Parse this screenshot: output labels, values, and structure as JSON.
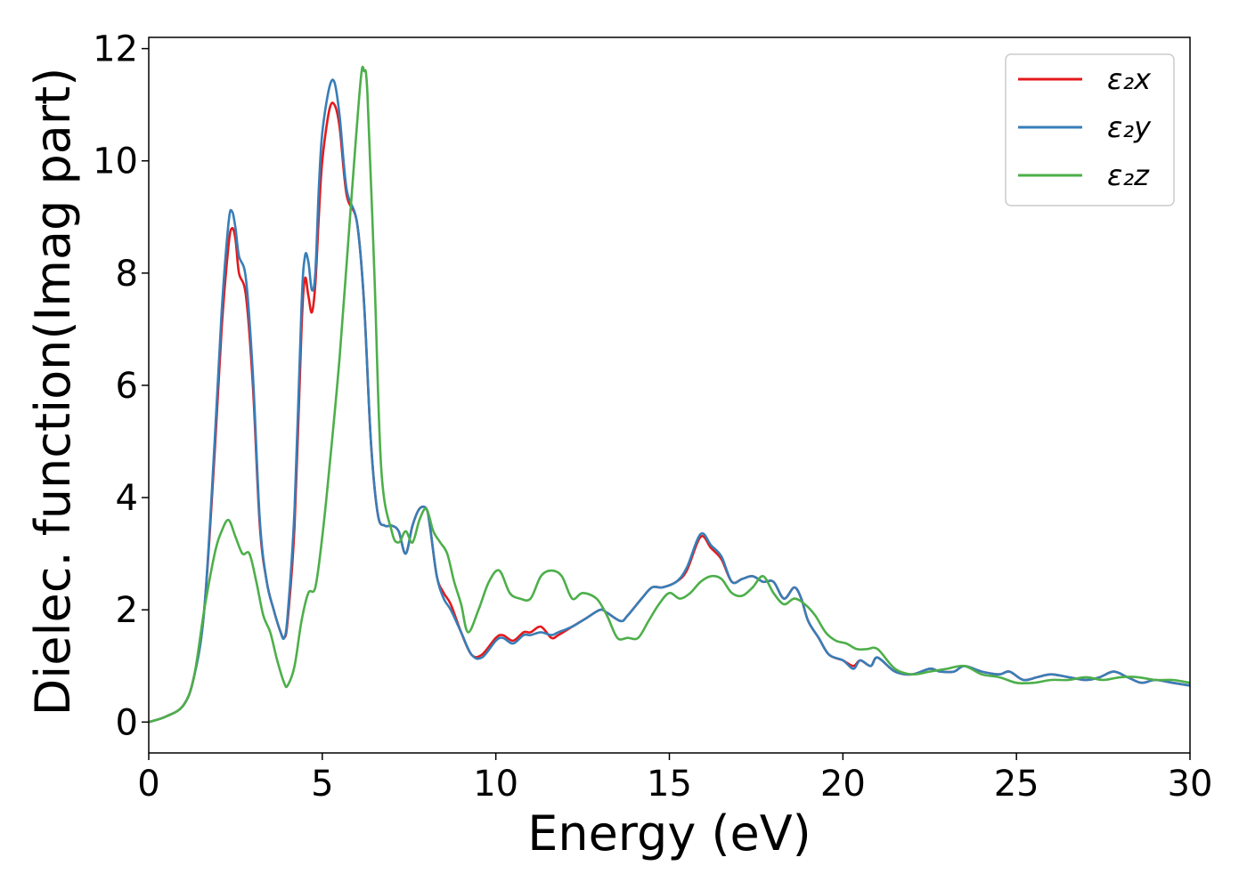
{
  "chart_data": {
    "type": "line",
    "xlabel": "Energy (eV)",
    "ylabel": "Dielec. function(Imag part)",
    "xlim": [
      0,
      30
    ],
    "ylim": [
      -0.55,
      12.2
    ],
    "xticks": [
      "0",
      "5",
      "10",
      "15",
      "20",
      "25",
      "30"
    ],
    "yticks": [
      "0",
      "2",
      "4",
      "6",
      "8",
      "10",
      "12"
    ],
    "grid": false,
    "legend_position": "top-right",
    "legend": [
      "ε₂x",
      "ε₂y",
      "ε₂z"
    ],
    "series": [
      {
        "name": "ε₂x",
        "color": "#e41a1c",
        "x": [
          0,
          0.5,
          1,
          1.3,
          1.6,
          1.9,
          2.1,
          2.3,
          2.4,
          2.5,
          2.6,
          2.8,
          3,
          3.2,
          3.4,
          3.6,
          3.8,
          3.9,
          4,
          4.2,
          4.4,
          4.5,
          4.6,
          4.7,
          4.8,
          4.9,
          5,
          5.2,
          5.35,
          5.5,
          5.7,
          6,
          6.2,
          6.4,
          6.6,
          6.8,
          7,
          7.2,
          7.4,
          7.6,
          7.8,
          8,
          8.1,
          8.3,
          8.5,
          8.7,
          9,
          9.3,
          9.6,
          10,
          10.2,
          10.5,
          10.8,
          11,
          11.3,
          11.6,
          11.8,
          12.2,
          12.6,
          13,
          13.2,
          13.6,
          13.8,
          14.2,
          14.5,
          14.8,
          15.2,
          15.5,
          15.9,
          16.2,
          16.5,
          16.8,
          17.1,
          17.4,
          17.7,
          18,
          18.3,
          18.6,
          18.8,
          19,
          19.3,
          19.6,
          20,
          20.3,
          20.5,
          20.8,
          21,
          21.5,
          22,
          22.5,
          22.8,
          23.2,
          23.5,
          24,
          24.5,
          24.8,
          25.2,
          25.6,
          26,
          26.5,
          27,
          27.4,
          27.8,
          28.2,
          28.6,
          29,
          29.5,
          30
        ],
        "y": [
          0,
          0.1,
          0.3,
          0.8,
          2,
          4.8,
          7,
          8.5,
          8.8,
          8.6,
          8,
          7.6,
          6,
          3.5,
          2.5,
          2,
          1.6,
          1.5,
          1.8,
          3.5,
          7,
          7.9,
          7.6,
          7.3,
          7.8,
          9,
          10,
          10.9,
          11,
          10.6,
          9.4,
          8.9,
          7.5,
          5,
          3.7,
          3.5,
          3.5,
          3.4,
          3,
          3.5,
          3.8,
          3.8,
          3.5,
          2.6,
          2.3,
          2.1,
          1.6,
          1.2,
          1.2,
          1.5,
          1.55,
          1.45,
          1.6,
          1.6,
          1.7,
          1.5,
          1.55,
          1.7,
          1.85,
          2,
          1.95,
          1.8,
          1.9,
          2.2,
          2.4,
          2.4,
          2.5,
          2.7,
          3.3,
          3.1,
          2.9,
          2.5,
          2.55,
          2.6,
          2.5,
          2.5,
          2.2,
          2.4,
          2.2,
          1.8,
          1.5,
          1.2,
          1.1,
          1,
          1.1,
          1,
          1.15,
          0.9,
          0.85,
          0.95,
          0.9,
          0.9,
          1,
          0.9,
          0.85,
          0.9,
          0.75,
          0.8,
          0.85,
          0.8,
          0.75,
          0.8,
          0.9,
          0.8,
          0.7,
          0.75,
          0.7,
          0.65
        ]
      },
      {
        "name": "ε₂y",
        "color": "#377eb8",
        "x": [
          0,
          0.5,
          1,
          1.3,
          1.6,
          1.9,
          2.1,
          2.3,
          2.4,
          2.5,
          2.6,
          2.8,
          3,
          3.2,
          3.4,
          3.6,
          3.8,
          3.9,
          4,
          4.2,
          4.4,
          4.5,
          4.6,
          4.7,
          4.8,
          4.9,
          5,
          5.2,
          5.35,
          5.5,
          5.7,
          6,
          6.2,
          6.4,
          6.6,
          6.8,
          7,
          7.2,
          7.4,
          7.6,
          7.8,
          8,
          8.1,
          8.3,
          8.5,
          8.7,
          9,
          9.3,
          9.6,
          10,
          10.2,
          10.5,
          10.8,
          11,
          11.3,
          11.6,
          11.8,
          12.2,
          12.6,
          13,
          13.2,
          13.6,
          13.8,
          14.2,
          14.5,
          14.8,
          15.2,
          15.5,
          15.9,
          16.2,
          16.5,
          16.8,
          17.1,
          17.4,
          17.7,
          18,
          18.3,
          18.6,
          18.8,
          19,
          19.3,
          19.6,
          20,
          20.3,
          20.5,
          20.8,
          21,
          21.5,
          22,
          22.5,
          22.8,
          23.2,
          23.5,
          24,
          24.5,
          24.8,
          25.2,
          25.6,
          26,
          26.5,
          27,
          27.4,
          27.8,
          28.2,
          28.6,
          29,
          29.5,
          30
        ],
        "y": [
          0,
          0.1,
          0.3,
          0.8,
          2,
          5,
          7.3,
          8.9,
          9.1,
          8.8,
          8.3,
          7.9,
          6.2,
          3.6,
          2.5,
          2,
          1.6,
          1.5,
          1.9,
          3.8,
          7.4,
          8.3,
          8.2,
          7.7,
          8,
          9.5,
          10.5,
          11.3,
          11.4,
          10.8,
          9.5,
          8.9,
          7.5,
          5,
          3.7,
          3.5,
          3.5,
          3.4,
          3,
          3.5,
          3.8,
          3.8,
          3.5,
          2.6,
          2.2,
          2,
          1.6,
          1.2,
          1.15,
          1.45,
          1.5,
          1.4,
          1.55,
          1.55,
          1.6,
          1.55,
          1.6,
          1.7,
          1.85,
          2,
          1.95,
          1.8,
          1.9,
          2.2,
          2.4,
          2.4,
          2.5,
          2.75,
          3.35,
          3.15,
          2.95,
          2.5,
          2.55,
          2.6,
          2.5,
          2.5,
          2.2,
          2.4,
          2.2,
          1.8,
          1.5,
          1.2,
          1.1,
          0.95,
          1.1,
          1,
          1.15,
          0.9,
          0.85,
          0.95,
          0.9,
          0.9,
          1,
          0.9,
          0.85,
          0.9,
          0.75,
          0.8,
          0.85,
          0.8,
          0.75,
          0.8,
          0.9,
          0.8,
          0.7,
          0.75,
          0.7,
          0.65
        ]
      },
      {
        "name": "ε₂z",
        "color": "#4daf4a",
        "x": [
          0,
          0.5,
          1,
          1.3,
          1.6,
          1.9,
          2.1,
          2.3,
          2.5,
          2.7,
          2.9,
          3.1,
          3.3,
          3.5,
          3.7,
          3.9,
          4,
          4.2,
          4.4,
          4.6,
          4.8,
          5,
          5.2,
          5.5,
          5.8,
          6.1,
          6.2,
          6.3,
          6.5,
          6.7,
          7,
          7.2,
          7.4,
          7.6,
          7.8,
          8,
          8.2,
          8.4,
          8.6,
          8.8,
          9,
          9.2,
          9.5,
          9.8,
          10.1,
          10.4,
          10.7,
          11,
          11.3,
          11.6,
          11.9,
          12.2,
          12.5,
          12.9,
          13.2,
          13.5,
          13.8,
          14.1,
          14.4,
          14.7,
          15,
          15.3,
          15.6,
          15.9,
          16.2,
          16.5,
          16.8,
          17.1,
          17.4,
          17.7,
          18,
          18.3,
          18.6,
          18.9,
          19.2,
          19.5,
          19.8,
          20.1,
          20.4,
          20.7,
          21,
          21.5,
          22,
          22.5,
          23,
          23.5,
          24,
          24.5,
          25,
          25.5,
          26,
          26.5,
          27,
          27.5,
          28,
          28.5,
          29,
          29.5,
          30
        ],
        "y": [
          0,
          0.1,
          0.3,
          0.8,
          2,
          3,
          3.4,
          3.6,
          3.3,
          3,
          3,
          2.5,
          1.9,
          1.6,
          1.1,
          0.7,
          0.65,
          1,
          1.8,
          2.3,
          2.4,
          3.3,
          4.5,
          6.5,
          9,
          11.4,
          11.6,
          11.2,
          8,
          4.5,
          3.4,
          3.2,
          3.4,
          3.2,
          3.6,
          3.8,
          3.4,
          3.2,
          3,
          2.5,
          2.1,
          1.6,
          2,
          2.5,
          2.7,
          2.3,
          2.2,
          2.2,
          2.6,
          2.7,
          2.6,
          2.2,
          2.3,
          2.2,
          1.9,
          1.5,
          1.5,
          1.5,
          1.8,
          2.1,
          2.3,
          2.2,
          2.3,
          2.5,
          2.6,
          2.55,
          2.3,
          2.25,
          2.4,
          2.6,
          2.3,
          2.1,
          2.2,
          2.1,
          1.9,
          1.6,
          1.45,
          1.4,
          1.3,
          1.3,
          1.3,
          0.95,
          0.85,
          0.9,
          0.95,
          1,
          0.85,
          0.8,
          0.7,
          0.7,
          0.75,
          0.75,
          0.8,
          0.75,
          0.8,
          0.8,
          0.75,
          0.75,
          0.7
        ]
      }
    ]
  }
}
